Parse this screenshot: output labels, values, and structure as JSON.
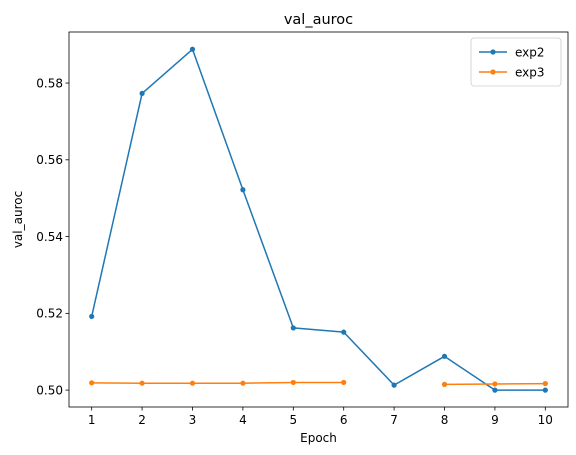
{
  "chart_data": {
    "type": "line",
    "title": "val_auroc",
    "xlabel": "Epoch",
    "ylabel": "val_auroc",
    "x_ticks": [
      1,
      2,
      3,
      4,
      5,
      6,
      7,
      8,
      9,
      10
    ],
    "y_ticks": [
      "0.50",
      "0.52",
      "0.54",
      "0.56",
      "0.58"
    ],
    "xlim": [
      0.55,
      10.45
    ],
    "ylim": [
      0.4956,
      0.5933
    ],
    "grid": false,
    "legend_position": "top-right",
    "series": [
      {
        "name": "exp2",
        "color": "#1f77b4",
        "marker": "circle",
        "points": [
          {
            "x": 1,
            "y": 0.5192
          },
          {
            "x": 2,
            "y": 0.5773
          },
          {
            "x": 3,
            "y": 0.5888
          },
          {
            "x": 4,
            "y": 0.5522
          },
          {
            "x": 5,
            "y": 0.5162
          },
          {
            "x": 6,
            "y": 0.5151
          },
          {
            "x": 7,
            "y": 0.5013
          },
          {
            "x": 8,
            "y": 0.5088
          },
          {
            "x": 9,
            "y": 0.5
          },
          {
            "x": 10,
            "y": 0.5
          }
        ]
      },
      {
        "name": "exp3",
        "color": "#ff7f0e",
        "marker": "circle",
        "segments": [
          [
            {
              "x": 1,
              "y": 0.5019
            },
            {
              "x": 2,
              "y": 0.5018
            },
            {
              "x": 3,
              "y": 0.5018
            },
            {
              "x": 4,
              "y": 0.5018
            },
            {
              "x": 5,
              "y": 0.502
            },
            {
              "x": 6,
              "y": 0.502
            }
          ],
          [
            {
              "x": 8,
              "y": 0.5015
            },
            {
              "x": 9,
              "y": 0.5016
            },
            {
              "x": 10,
              "y": 0.5017
            }
          ]
        ]
      }
    ]
  }
}
